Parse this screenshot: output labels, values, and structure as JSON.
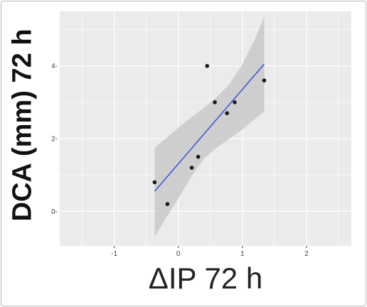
{
  "chart_data": {
    "type": "scatter",
    "title": "",
    "xlabel": "ΔIP 72 h",
    "ylabel": "DCA (mm) 72 h",
    "xlim": [
      -1.85,
      2.7
    ],
    "ylim": [
      -0.95,
      5.5
    ],
    "x_ticks": [
      -1,
      0,
      1,
      2
    ],
    "x_tick_labels": [
      "-1",
      "0",
      "1",
      "2"
    ],
    "y_ticks": [
      0,
      2,
      4
    ],
    "y_tick_labels": [
      "0-",
      "2-",
      "4-"
    ],
    "grid": true,
    "legend": "none",
    "points": [
      {
        "x": -0.37,
        "y": 0.8
      },
      {
        "x": -0.17,
        "y": 0.2
      },
      {
        "x": 0.21,
        "y": 1.2
      },
      {
        "x": 0.31,
        "y": 1.5
      },
      {
        "x": 0.45,
        "y": 4.0
      },
      {
        "x": 0.57,
        "y": 3.0
      },
      {
        "x": 0.76,
        "y": 2.7
      },
      {
        "x": 0.88,
        "y": 3.0
      },
      {
        "x": 1.34,
        "y": 3.6
      }
    ],
    "fit_line": {
      "x": [
        -0.37,
        1.34
      ],
      "y": [
        0.55,
        4.05
      ]
    },
    "confidence_band": {
      "x": [
        -0.37,
        -0.2,
        0.0,
        0.2,
        0.4,
        0.6,
        0.8,
        1.0,
        1.2,
        1.34
      ],
      "upper": [
        1.75,
        2.0,
        2.3,
        2.58,
        2.85,
        3.15,
        3.5,
        4.05,
        4.75,
        5.35
      ],
      "lower": [
        -0.7,
        -0.2,
        0.35,
        0.95,
        1.45,
        1.75,
        2.0,
        2.25,
        2.55,
        2.75
      ]
    },
    "colors": {
      "panel": "#ebebeb",
      "grid": "#ffffff",
      "band": "#c9c9c9",
      "line": "#3a5bd6",
      "point": "#1a1a1a"
    }
  }
}
